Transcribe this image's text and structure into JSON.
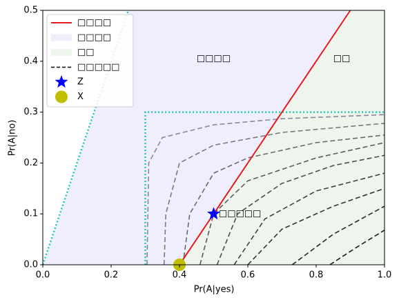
{
  "chart_data": {
    "type": "line",
    "x_label": "Pr(A|yes)",
    "y_label": "Pr(A|no)",
    "xlim": [
      0,
      1
    ],
    "ylim": [
      0,
      0.5
    ],
    "xticks": [
      {
        "value": 0,
        "label": "0.0"
      },
      {
        "value": 0.2,
        "label": "0.2"
      },
      {
        "value": 0.4,
        "label": "0.4"
      },
      {
        "value": 0.6,
        "label": "0.6"
      },
      {
        "value": 0.8,
        "label": "0.8"
      },
      {
        "value": 1,
        "label": "1.0"
      }
    ],
    "yticks": [
      {
        "value": 0,
        "label": "0.0"
      },
      {
        "value": 0.1,
        "label": "0.1"
      },
      {
        "value": 0.2,
        "label": "0.2"
      },
      {
        "value": 0.3,
        "label": "0.3"
      },
      {
        "value": 0.4,
        "label": "0.4"
      },
      {
        "value": 0.5,
        "label": "0.5"
      }
    ],
    "areas": [
      {
        "name": "□□□□",
        "color": "#eeeefc",
        "x": [
          0,
          0.25,
          0.9,
          0.4
        ],
        "values": [
          0,
          0.5,
          0.5,
          0
        ]
      },
      {
        "name": "□□",
        "color": "#eef5ec",
        "x": [
          0.4,
          0.9,
          1,
          1
        ],
        "values": [
          0,
          0.5,
          0.5,
          0
        ]
      }
    ],
    "guides": [
      {
        "color": "#1ec8b8",
        "x": [
          0,
          0.25
        ],
        "values": [
          0,
          0.5
        ]
      },
      {
        "color": "#1ec8b8",
        "x": [
          0.3,
          0.3,
          1
        ],
        "values": [
          0,
          0.3,
          0.3
        ]
      }
    ],
    "contour_name": "□□□□□",
    "contours": [
      {
        "color": "#8b879a",
        "x": [
          0.305,
          0.31,
          0.35,
          0.5,
          0.7,
          1
        ],
        "values": [
          0,
          0.2,
          0.25,
          0.275,
          0.287,
          0.295
        ]
      },
      {
        "color": "#7a7682",
        "x": [
          0.355,
          0.36,
          0.4,
          0.5,
          0.7,
          1
        ],
        "values": [
          0,
          0.1,
          0.2,
          0.235,
          0.26,
          0.278
        ]
      },
      {
        "color": "#6a6870",
        "x": [
          0.41,
          0.43,
          0.5,
          0.6,
          0.8,
          1
        ],
        "values": [
          0,
          0.1,
          0.18,
          0.21,
          0.24,
          0.255
        ]
      },
      {
        "color": "#5a5a5e",
        "x": [
          0.46,
          0.5,
          0.6,
          0.8,
          1
        ],
        "values": [
          0,
          0.1,
          0.165,
          0.21,
          0.24
        ]
      },
      {
        "color": "#4d4d4d",
        "x": [
          0.51,
          0.57,
          0.7,
          0.85,
          1
        ],
        "values": [
          0,
          0.1,
          0.16,
          0.195,
          0.215
        ]
      },
      {
        "color": "#404040",
        "x": [
          0.56,
          0.65,
          0.8,
          1
        ],
        "values": [
          0,
          0.09,
          0.145,
          0.18
        ]
      },
      {
        "color": "#333333",
        "x": [
          0.6,
          0.7,
          0.85,
          1
        ],
        "values": [
          0,
          0.07,
          0.115,
          0.15
        ]
      },
      {
        "color": "#262626",
        "x": [
          0.73,
          0.85,
          1
        ],
        "values": [
          0,
          0.06,
          0.115
        ]
      },
      {
        "color": "#1a1a1a",
        "x": [
          0.84,
          0.92,
          1
        ],
        "values": [
          0,
          0.035,
          0.068
        ]
      }
    ],
    "series": [
      {
        "name": "□□□□",
        "color": "#e41a1c",
        "x": [
          0.4,
          0.9
        ],
        "values": [
          0,
          0.5
        ]
      }
    ],
    "points": [
      {
        "name": "Z",
        "color": "#0000ff",
        "marker": "star",
        "x": 0.5,
        "value": 0.1
      },
      {
        "name": "X",
        "color": "#bfbf00",
        "marker": "circle",
        "x": 0.4,
        "value": 0
      }
    ],
    "annotations": [
      {
        "text": "□□□□",
        "x": 0.45,
        "y": 0.405,
        "color": "#000"
      },
      {
        "text": "□□",
        "x": 0.85,
        "y": 0.405,
        "color": "#000"
      },
      {
        "text": "□□□□□",
        "x": 0.515,
        "y": 0.1,
        "color": "#0000ff"
      }
    ]
  }
}
